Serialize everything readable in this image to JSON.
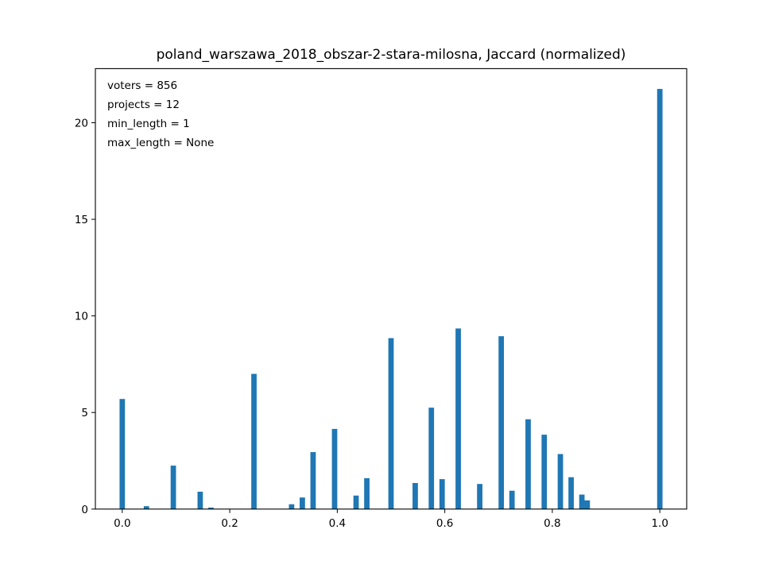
{
  "chart_data": {
    "type": "bar",
    "title": "poland_warszawa_2018_obszar-2-stara-milosna, Jaccard (normalized)",
    "xlabel": "",
    "ylabel": "",
    "xlim": [
      -0.05,
      1.05
    ],
    "ylim": [
      0,
      22.8
    ],
    "xticks": [
      0.0,
      0.2,
      0.4,
      0.6,
      0.8,
      1.0
    ],
    "xtick_labels": [
      "0.0",
      "0.2",
      "0.4",
      "0.6",
      "0.8",
      "1.0"
    ],
    "yticks": [
      0,
      5,
      10,
      15,
      20
    ],
    "ytick_labels": [
      "0",
      "5",
      "10",
      "15",
      "20"
    ],
    "grid": false,
    "bar_color": "#1f77b4",
    "bin_width": 0.01,
    "annotations": [
      "voters = 856",
      "projects = 12",
      "min_length = 1",
      "max_length = None"
    ],
    "bins": [
      {
        "x": 0.0,
        "y": 5.7
      },
      {
        "x": 0.045,
        "y": 0.15
      },
      {
        "x": 0.095,
        "y": 2.25
      },
      {
        "x": 0.145,
        "y": 0.9
      },
      {
        "x": 0.165,
        "y": 0.08
      },
      {
        "x": 0.245,
        "y": 7.0
      },
      {
        "x": 0.315,
        "y": 0.25
      },
      {
        "x": 0.335,
        "y": 0.6
      },
      {
        "x": 0.355,
        "y": 2.95
      },
      {
        "x": 0.395,
        "y": 4.15
      },
      {
        "x": 0.435,
        "y": 0.7
      },
      {
        "x": 0.455,
        "y": 1.6
      },
      {
        "x": 0.5,
        "y": 8.85
      },
      {
        "x": 0.545,
        "y": 1.35
      },
      {
        "x": 0.575,
        "y": 5.25
      },
      {
        "x": 0.595,
        "y": 1.55
      },
      {
        "x": 0.625,
        "y": 9.35
      },
      {
        "x": 0.665,
        "y": 1.3
      },
      {
        "x": 0.705,
        "y": 8.95
      },
      {
        "x": 0.725,
        "y": 0.95
      },
      {
        "x": 0.755,
        "y": 4.65
      },
      {
        "x": 0.785,
        "y": 3.85
      },
      {
        "x": 0.815,
        "y": 2.85
      },
      {
        "x": 0.835,
        "y": 1.65
      },
      {
        "x": 0.855,
        "y": 0.75
      },
      {
        "x": 0.865,
        "y": 0.45
      },
      {
        "x": 1.0,
        "y": 21.75
      }
    ]
  }
}
